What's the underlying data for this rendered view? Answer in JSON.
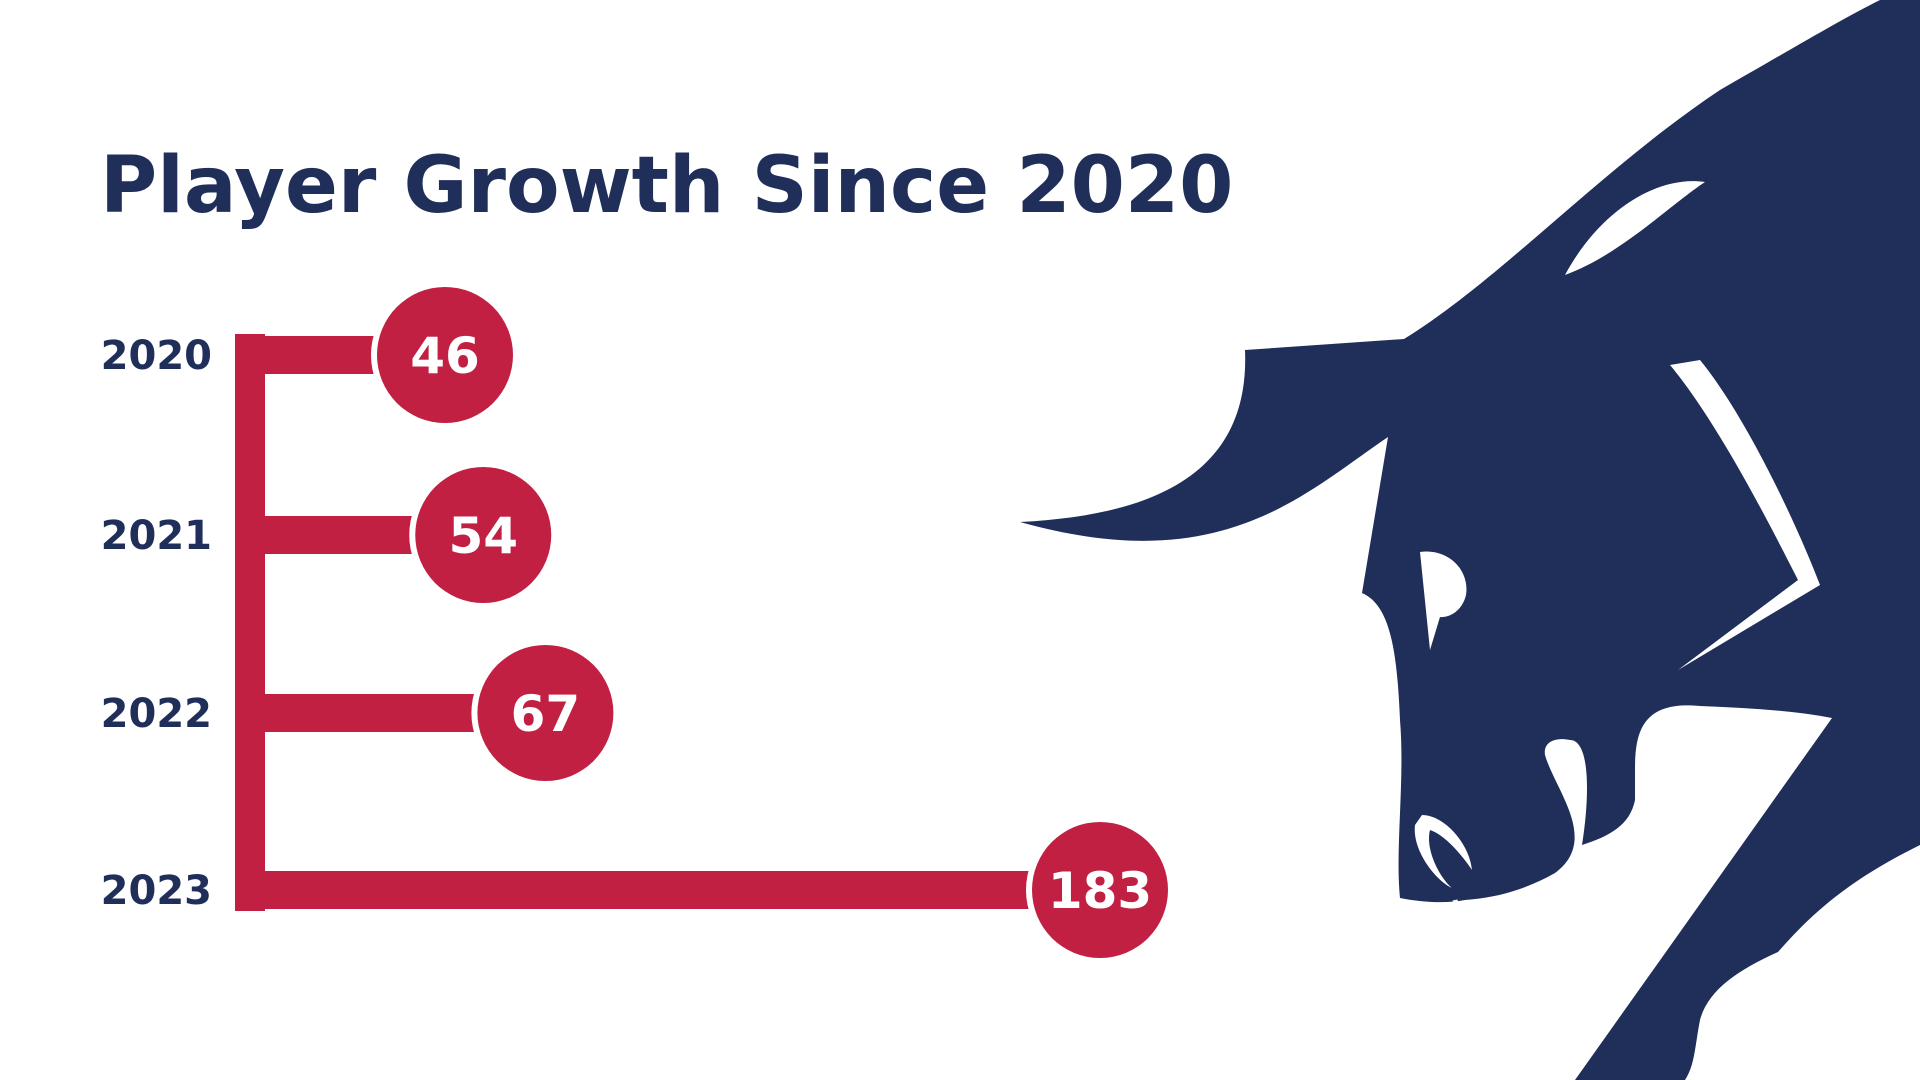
{
  "title": "Player Growth Since 2020",
  "colors": {
    "primary": "#1f2f5a",
    "accent": "#c12042",
    "background": "#ffffff"
  },
  "mascot": {
    "icon": "bull-head-icon"
  },
  "chart_data": {
    "type": "bar",
    "orientation": "horizontal",
    "title": "Player Growth Since 2020",
    "categories": [
      "2020",
      "2021",
      "2022",
      "2023"
    ],
    "values": [
      46,
      54,
      67,
      183
    ],
    "value_labels": [
      "46",
      "54",
      "67",
      "183"
    ],
    "xlabel": "",
    "ylabel": "",
    "grid": false,
    "legend": "none"
  }
}
